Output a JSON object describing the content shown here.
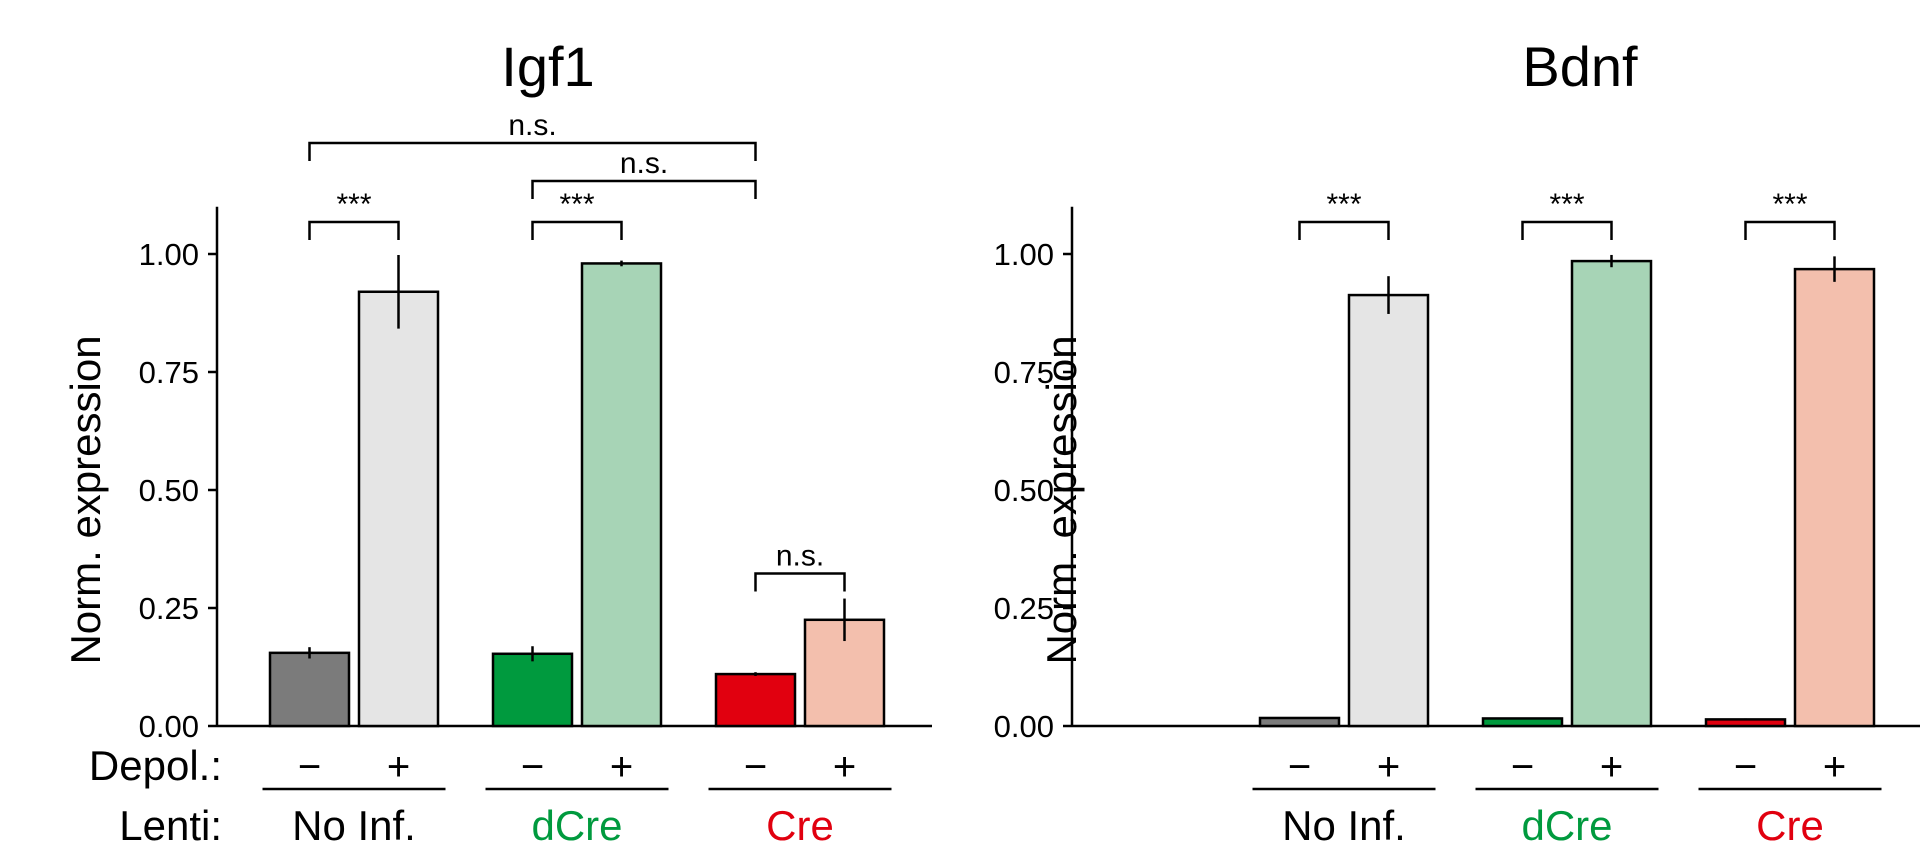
{
  "row_labels": {
    "depol": "Depol.:",
    "lenti": "Lenti:"
  },
  "colors": {
    "no_inf_minus": "#7b7b7b",
    "no_inf_plus": "#e5e5e5",
    "dcre_minus": "#009a3e",
    "dcre_plus": "#a7d4b6",
    "cre_minus": "#e1000f",
    "cre_plus": "#f3bfad",
    "dcre_text": "#009a3e",
    "cre_text": "#e1000f"
  },
  "chart_data": [
    {
      "type": "bar",
      "title": "Igf1",
      "ylabel": "Norm. expression",
      "ylim": [
        0,
        1.1
      ],
      "yticks": [
        "0.00",
        "0.25",
        "0.50",
        "0.75",
        "1.00"
      ],
      "groups": [
        "No Inf.",
        "dCre",
        "Cre"
      ],
      "depol_labels": [
        "−",
        "+"
      ],
      "bars": [
        {
          "group": "No Inf.",
          "depol": "−",
          "value": 0.155,
          "error": 0.012
        },
        {
          "group": "No Inf.",
          "depol": "+",
          "value": 0.92,
          "error": 0.078
        },
        {
          "group": "dCre",
          "depol": "−",
          "value": 0.153,
          "error": 0.016
        },
        {
          "group": "dCre",
          "depol": "+",
          "value": 0.98,
          "error": 0.006
        },
        {
          "group": "Cre",
          "depol": "−",
          "value": 0.11,
          "error": 0.004
        },
        {
          "group": "Cre",
          "depol": "+",
          "value": 0.225,
          "error": 0.045
        }
      ],
      "significance": [
        {
          "from": 0,
          "to": 1,
          "label": "***"
        },
        {
          "from": 2,
          "to": 3,
          "label": "***"
        },
        {
          "from": 4,
          "to": 5,
          "label": "n.s."
        },
        {
          "from": 2,
          "to": 4,
          "label": "n.s."
        },
        {
          "from": 0,
          "to": 4,
          "label": "n.s."
        }
      ]
    },
    {
      "type": "bar",
      "title": "Bdnf",
      "ylabel": "Norm. expression",
      "ylim": [
        0,
        1.1
      ],
      "yticks": [
        "0.00",
        "0.25",
        "0.50",
        "0.75",
        "1.00"
      ],
      "groups": [
        "No Inf.",
        "dCre",
        "Cre"
      ],
      "depol_labels": [
        "−",
        "+"
      ],
      "bars": [
        {
          "group": "No Inf.",
          "depol": "−",
          "value": 0.017,
          "error": 0.002
        },
        {
          "group": "No Inf.",
          "depol": "+",
          "value": 0.913,
          "error": 0.04
        },
        {
          "group": "dCre",
          "depol": "−",
          "value": 0.016,
          "error": 0.002
        },
        {
          "group": "dCre",
          "depol": "+",
          "value": 0.985,
          "error": 0.013
        },
        {
          "group": "Cre",
          "depol": "−",
          "value": 0.014,
          "error": 0.002
        },
        {
          "group": "Cre",
          "depol": "+",
          "value": 0.968,
          "error": 0.027
        }
      ],
      "significance": [
        {
          "from": 0,
          "to": 1,
          "label": "***"
        },
        {
          "from": 2,
          "to": 3,
          "label": "***"
        },
        {
          "from": 4,
          "to": 5,
          "label": "***"
        }
      ]
    }
  ]
}
